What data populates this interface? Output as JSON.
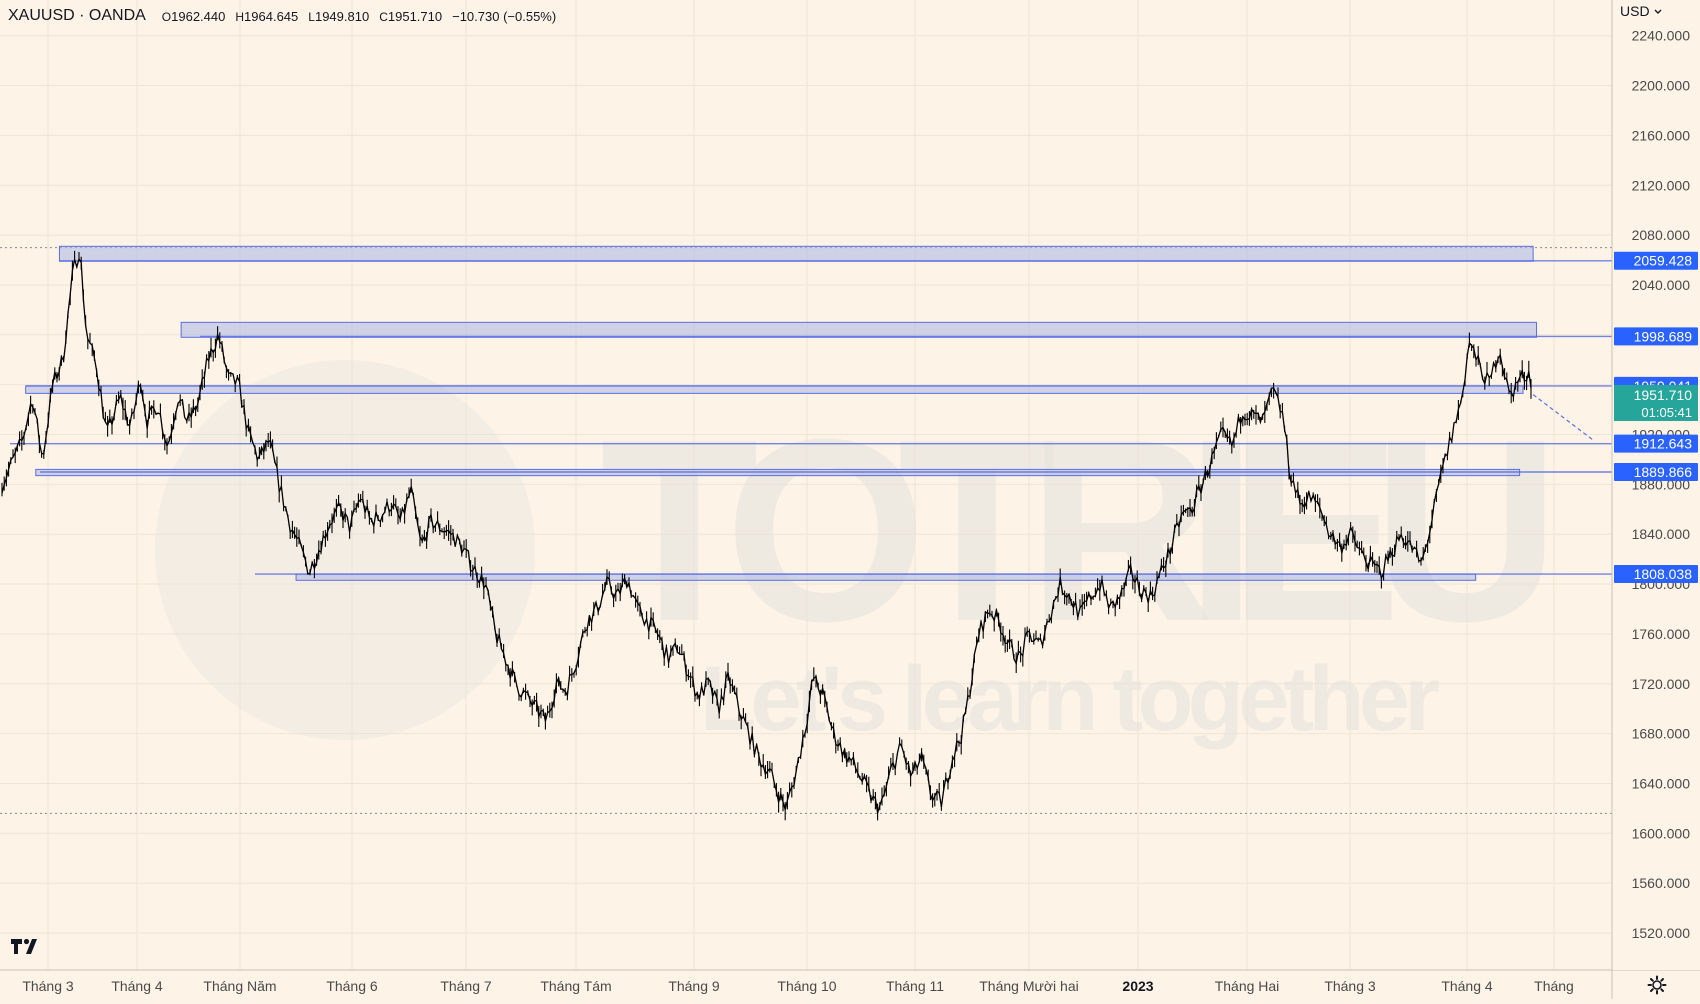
{
  "header": {
    "symbol": "XAUUSD · OANDA",
    "open_label": "O",
    "open": "1962.440",
    "high_label": "H",
    "high": "1964.645",
    "low_label": "L",
    "low": "1949.810",
    "close_label": "C",
    "close": "1951.710",
    "change": "−10.730 (−0.55%)"
  },
  "currency": "USD",
  "icons": {
    "currency_menu": "chevron-down-icon",
    "logo": "tradingview-logo-icon",
    "settings": "gear-icon"
  },
  "colors": {
    "background": "#fdf3e7",
    "grid": "#f0e4d4",
    "candles": "#000000",
    "zone_fill": "#aab4e8",
    "zone_line": "#5b6fe0",
    "label_bg": "#2962ff",
    "price_bg": "#26a69a",
    "axis_text": "#4a4a4a",
    "watermark": "#e3e1dd"
  },
  "watermark": {
    "title": "TOTRIEU",
    "subtitle": "Let's learn together"
  },
  "chart_data": {
    "type": "candlestick",
    "yscale": "linear",
    "ylim": [
      1490,
      2262
    ],
    "y_ticks": [
      1520,
      1560,
      1600,
      1640,
      1680,
      1720,
      1760,
      1800,
      1840,
      1880,
      1920,
      2000,
      2040,
      2080,
      2120,
      2160,
      2200,
      2240
    ],
    "x_labels": [
      "Tháng 3",
      "Tháng 4",
      "Tháng Năm",
      "Tháng 6",
      "Tháng 7",
      "Tháng Tám",
      "Tháng 9",
      "Tháng 10",
      "Tháng 11",
      "Tháng Mười hai",
      "2023",
      "Tháng Hai",
      "Tháng 3",
      "Tháng 4",
      "Tháng"
    ],
    "bold_x_labels": [
      "2023"
    ],
    "price_path": [
      [
        0,
        1880
      ],
      [
        0.6,
        1915
      ],
      [
        0.9,
        1950
      ],
      [
        1.2,
        1900
      ],
      [
        1.5,
        1960
      ],
      [
        1.8,
        1980
      ],
      [
        2.1,
        2050
      ],
      [
        2.3,
        2070
      ],
      [
        2.5,
        2000
      ],
      [
        2.8,
        1975
      ],
      [
        3.1,
        1920
      ],
      [
        3.5,
        1950
      ],
      [
        3.8,
        1925
      ],
      [
        4.1,
        1965
      ],
      [
        4.3,
        1930
      ],
      [
        4.6,
        1945
      ],
      [
        4.9,
        1910
      ],
      [
        5.2,
        1950
      ],
      [
        5.5,
        1930
      ],
      [
        5.8,
        1945
      ],
      [
        6.1,
        1980
      ],
      [
        6.4,
        2000
      ],
      [
        6.7,
        1965
      ],
      [
        7.0,
        1960
      ],
      [
        7.3,
        1920
      ],
      [
        7.6,
        1900
      ],
      [
        7.9,
        1915
      ],
      [
        8.2,
        1880
      ],
      [
        8.5,
        1850
      ],
      [
        8.8,
        1830
      ],
      [
        9.1,
        1810
      ],
      [
        9.4,
        1830
      ],
      [
        9.7,
        1850
      ],
      [
        10.0,
        1860
      ],
      [
        10.3,
        1845
      ],
      [
        10.6,
        1870
      ],
      [
        10.9,
        1850
      ],
      [
        11.2,
        1855
      ],
      [
        11.5,
        1865
      ],
      [
        11.8,
        1850
      ],
      [
        12.1,
        1875
      ],
      [
        12.4,
        1830
      ],
      [
        12.7,
        1850
      ],
      [
        13.0,
        1845
      ],
      [
        13.3,
        1840
      ],
      [
        13.6,
        1830
      ],
      [
        13.9,
        1815
      ],
      [
        14.3,
        1800
      ],
      [
        14.6,
        1760
      ],
      [
        14.9,
        1740
      ],
      [
        15.2,
        1720
      ],
      [
        15.5,
        1710
      ],
      [
        15.8,
        1700
      ],
      [
        16.1,
        1690
      ],
      [
        16.4,
        1720
      ],
      [
        16.7,
        1715
      ],
      [
        17.0,
        1740
      ],
      [
        17.3,
        1770
      ],
      [
        17.6,
        1780
      ],
      [
        17.9,
        1800
      ],
      [
        18.2,
        1790
      ],
      [
        18.5,
        1805
      ],
      [
        18.8,
        1780
      ],
      [
        19.1,
        1770
      ],
      [
        19.4,
        1760
      ],
      [
        19.7,
        1740
      ],
      [
        20.0,
        1750
      ],
      [
        20.3,
        1730
      ],
      [
        20.6,
        1710
      ],
      [
        20.9,
        1720
      ],
      [
        21.2,
        1700
      ],
      [
        21.5,
        1725
      ],
      [
        21.8,
        1700
      ],
      [
        22.1,
        1680
      ],
      [
        22.4,
        1660
      ],
      [
        22.7,
        1650
      ],
      [
        23.0,
        1630
      ],
      [
        23.2,
        1620
      ],
      [
        23.5,
        1650
      ],
      [
        23.8,
        1690
      ],
      [
        24.0,
        1725
      ],
      [
        24.3,
        1710
      ],
      [
        24.6,
        1680
      ],
      [
        24.9,
        1665
      ],
      [
        25.2,
        1655
      ],
      [
        25.5,
        1640
      ],
      [
        25.8,
        1625
      ],
      [
        26.0,
        1620
      ],
      [
        26.3,
        1650
      ],
      [
        26.6,
        1670
      ],
      [
        26.9,
        1645
      ],
      [
        27.2,
        1660
      ],
      [
        27.5,
        1630
      ],
      [
        27.8,
        1625
      ],
      [
        28.1,
        1660
      ],
      [
        28.4,
        1680
      ],
      [
        28.6,
        1710
      ],
      [
        28.9,
        1760
      ],
      [
        29.2,
        1780
      ],
      [
        29.5,
        1770
      ],
      [
        29.8,
        1750
      ],
      [
        30.1,
        1740
      ],
      [
        30.4,
        1760
      ],
      [
        30.7,
        1750
      ],
      [
        31.0,
        1775
      ],
      [
        31.3,
        1800
      ],
      [
        31.6,
        1790
      ],
      [
        31.9,
        1775
      ],
      [
        32.2,
        1790
      ],
      [
        32.5,
        1800
      ],
      [
        32.8,
        1780
      ],
      [
        33.1,
        1790
      ],
      [
        33.4,
        1810
      ],
      [
        33.7,
        1795
      ],
      [
        34.0,
        1790
      ],
      [
        34.3,
        1810
      ],
      [
        34.6,
        1830
      ],
      [
        34.9,
        1855
      ],
      [
        35.2,
        1860
      ],
      [
        35.5,
        1880
      ],
      [
        35.8,
        1900
      ],
      [
        36.1,
        1920
      ],
      [
        36.4,
        1910
      ],
      [
        36.7,
        1940
      ],
      [
        37.0,
        1935
      ],
      [
        37.3,
        1930
      ],
      [
        37.6,
        1955
      ],
      [
        37.9,
        1935
      ],
      [
        38.1,
        1890
      ],
      [
        38.4,
        1865
      ],
      [
        38.7,
        1870
      ],
      [
        39.0,
        1860
      ],
      [
        39.3,
        1840
      ],
      [
        39.6,
        1830
      ],
      [
        39.9,
        1840
      ],
      [
        40.2,
        1825
      ],
      [
        40.5,
        1815
      ],
      [
        40.8,
        1810
      ],
      [
        41.1,
        1825
      ],
      [
        41.4,
        1840
      ],
      [
        41.7,
        1830
      ],
      [
        42.0,
        1815
      ],
      [
        42.3,
        1850
      ],
      [
        42.6,
        1890
      ],
      [
        42.9,
        1920
      ],
      [
        43.2,
        1950
      ],
      [
        43.4,
        1995
      ],
      [
        43.7,
        1975
      ],
      [
        44.0,
        1960
      ],
      [
        44.3,
        1990
      ],
      [
        44.6,
        1950
      ],
      [
        44.9,
        1965
      ],
      [
        45.2,
        1970
      ],
      [
        45.3,
        1952
      ]
    ],
    "price_path_x_unit": "months since the first visible bar (early March of the earlier year)",
    "zones": [
      {
        "label": "2059.428",
        "low": 2059,
        "high": 2071,
        "from": 1.7,
        "to": 45.3
      },
      {
        "label": "1998.689",
        "low": 1998,
        "high": 2010,
        "from": 5.3,
        "to": 45.4
      },
      {
        "label": "1959.041",
        "low": 1953,
        "high": 1959,
        "from": 0.7,
        "to": 45.0
      },
      {
        "label": "1889.866",
        "low": 1887,
        "high": 1892,
        "from": 1.0,
        "to": 44.9
      },
      {
        "label": "1808.038",
        "low": 1803,
        "high": 1808,
        "from": 8.7,
        "to": 43.6
      }
    ],
    "levels": [
      {
        "label": "1912.643",
        "value": 1912.643
      },
      {
        "label": "1808.038",
        "value": 1808.038
      },
      {
        "label": "1998.689",
        "value": 1998.689
      },
      {
        "label": "2059.428",
        "value": 2059.428
      }
    ],
    "dotted_levels": [
      2070,
      1616
    ],
    "current_price": {
      "value": 1951.71,
      "label": "1951.710",
      "countdown": "01:05:41"
    },
    "projection": [
      [
        45.3,
        1952
      ],
      [
        47.1,
        1915
      ]
    ]
  }
}
